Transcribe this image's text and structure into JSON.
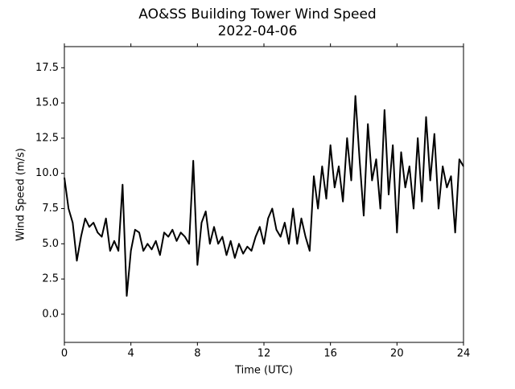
{
  "chart_data": {
    "type": "line",
    "title": "AO&SS Building Tower Wind Speed",
    "subtitle": "2022-04-06",
    "x_label": "Time (UTC)",
    "y_label": "Wind Speed (m/s)",
    "x": [
      0,
      0.25,
      0.5,
      0.75,
      1,
      1.25,
      1.5,
      1.75,
      2,
      2.25,
      2.5,
      2.75,
      3,
      3.25,
      3.5,
      3.75,
      4,
      4.25,
      4.5,
      4.75,
      5,
      5.25,
      5.5,
      5.75,
      6,
      6.25,
      6.5,
      6.75,
      7,
      7.25,
      7.5,
      7.75,
      8,
      8.25,
      8.5,
      8.75,
      9,
      9.25,
      9.5,
      9.75,
      10,
      10.25,
      10.5,
      10.75,
      11,
      11.25,
      11.5,
      11.75,
      12,
      12.25,
      12.5,
      12.75,
      13,
      13.25,
      13.5,
      13.75,
      14,
      14.25,
      14.5,
      14.75,
      15,
      15.25,
      15.5,
      15.75,
      16,
      16.25,
      16.5,
      16.75,
      17,
      17.25,
      17.5,
      17.75,
      18,
      18.25,
      18.5,
      18.75,
      19,
      19.25,
      19.5,
      19.75,
      20,
      20.25,
      20.5,
      20.75,
      21,
      21.25,
      21.5,
      21.75,
      22,
      22.25,
      22.5,
      22.75,
      23,
      23.25,
      23.5,
      23.75,
      24
    ],
    "series": [
      {
        "color": "#000000",
        "values": [
          9.7,
          7.5,
          6.5,
          3.8,
          5.5,
          6.8,
          6.2,
          6.5,
          5.8,
          5.5,
          6.8,
          4.5,
          5.2,
          4.5,
          9.2,
          1.3,
          4.5,
          6.0,
          5.8,
          4.5,
          5.0,
          4.6,
          5.2,
          4.2,
          5.8,
          5.5,
          6.0,
          5.2,
          5.8,
          5.5,
          5.0,
          10.9,
          3.5,
          6.5,
          7.3,
          5.0,
          6.2,
          5.0,
          5.5,
          4.2,
          5.2,
          4.0,
          5.0,
          4.3,
          4.8,
          4.5,
          5.5,
          6.2,
          5.0,
          6.8,
          7.5,
          6.0,
          5.5,
          6.5,
          5.0,
          7.5,
          5.0,
          6.8,
          5.5,
          4.5,
          9.8,
          7.5,
          10.5,
          8.2,
          12.0,
          9.0,
          10.5,
          8.0,
          12.5,
          9.5,
          15.5,
          11.0,
          7.0,
          13.5,
          9.5,
          11.0,
          7.5,
          14.5,
          8.5,
          12.0,
          5.8,
          11.5,
          9.0,
          10.5,
          7.5,
          12.5,
          8.0,
          14.0,
          9.5,
          12.8,
          7.5,
          10.5,
          9.0,
          9.8,
          5.8,
          11.0,
          10.5
        ]
      }
    ],
    "xlim": [
      0,
      24
    ],
    "xticks": [
      0,
      4,
      8,
      12,
      16,
      20,
      24
    ],
    "ylim": [
      -2,
      19
    ],
    "yticks": [
      {
        "value": 0,
        "label": "0.0"
      },
      2.5,
      {
        "value": 5,
        "label": "5.0"
      },
      7.5,
      {
        "value": 10,
        "label": "10.0"
      },
      12.5,
      {
        "value": 15,
        "label": "15.0"
      },
      17.5
    ],
    "grid": false
  }
}
